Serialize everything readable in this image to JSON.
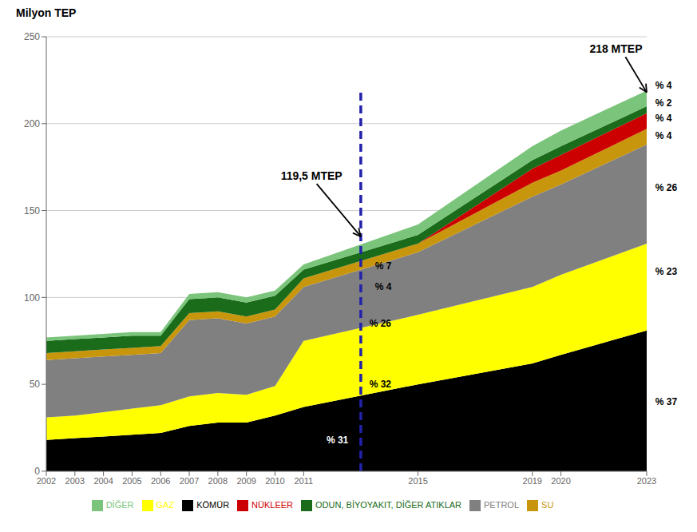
{
  "chart_data": {
    "type": "area",
    "stacked": true,
    "y_label": "Milyon TEP",
    "x": [
      2002,
      2003,
      2004,
      2005,
      2006,
      2007,
      2008,
      2009,
      2010,
      2011,
      2015,
      2019,
      2020,
      2023
    ],
    "xlim": [
      2002,
      2023
    ],
    "xticks": [
      2002,
      2003,
      2004,
      2005,
      2006,
      2007,
      2008,
      2009,
      2010,
      2011,
      2015,
      2019,
      2020,
      2023
    ],
    "ylim": [
      0,
      250
    ],
    "yticks": [
      0,
      50,
      100,
      150,
      200,
      250
    ],
    "grid": true,
    "legend": "bottom",
    "series": [
      {
        "name": "KÖMÜR",
        "color": "#000000",
        "values": [
          18,
          19,
          20,
          21,
          22,
          26,
          28,
          28,
          32,
          37,
          50,
          62,
          67,
          81
        ]
      },
      {
        "name": "GAZ",
        "color": "#ffff00",
        "values": [
          13,
          13,
          14,
          15,
          16,
          17,
          17,
          16,
          17,
          38,
          40,
          44,
          46,
          50
        ]
      },
      {
        "name": "PETROL",
        "color": "#808080",
        "values": [
          33,
          33,
          32,
          31,
          30,
          44,
          43,
          41,
          40,
          31,
          36,
          52,
          52,
          57
        ]
      },
      {
        "name": "SU",
        "color": "#c8960c",
        "values": [
          4,
          4,
          4,
          4,
          4,
          4,
          4,
          4,
          4,
          5,
          5,
          8,
          8,
          9
        ]
      },
      {
        "name": "NÜKLEER",
        "color": "#cc0000",
        "values": [
          0,
          0,
          0,
          0,
          0,
          0,
          0,
          0,
          0,
          0,
          0,
          8,
          9,
          9
        ]
      },
      {
        "name": "ODUN, BİYOYAKIT, DİĞER ATIKLAR",
        "color": "#1a6b1a",
        "values": [
          7,
          7,
          7,
          7,
          6,
          8,
          8,
          8,
          8,
          5,
          5,
          5,
          5,
          4
        ]
      },
      {
        "name": "DİĞER",
        "color": "#7bc47b",
        "values": [
          2,
          2,
          2,
          2,
          2,
          3,
          3,
          3,
          3,
          3,
          6,
          8,
          9,
          9
        ]
      }
    ],
    "reference_lines": [
      {
        "x": 2013,
        "y": [
          0,
          220
        ],
        "color": "#2222aa",
        "line_style": "dashed"
      }
    ],
    "annotations": [
      {
        "text": "119,5 MTEP",
        "x": 2013,
        "y": 135,
        "text_x": 2010.2,
        "text_y": 170
      },
      {
        "text": "218 MTEP",
        "x": 2023,
        "y": 218,
        "text_x": 2021.0,
        "text_y": 243
      },
      {
        "text": "% 7",
        "x": 2013.5,
        "y": 118
      },
      {
        "text": "% 4",
        "x": 2013.5,
        "y": 106
      },
      {
        "text": "% 26",
        "x": 2013.3,
        "y": 85
      },
      {
        "text": "% 32",
        "x": 2013.3,
        "y": 50
      },
      {
        "text": "% 31",
        "x": 2011.8,
        "y": 18,
        "color": "#ffffff"
      },
      {
        "text": "% 4",
        "x": 2023.3,
        "y": 222
      },
      {
        "text": "% 2",
        "x": 2023.3,
        "y": 212
      },
      {
        "text": "% 4",
        "x": 2023.3,
        "y": 203
      },
      {
        "text": "% 4",
        "x": 2023.3,
        "y": 193
      },
      {
        "text": "% 26",
        "x": 2023.3,
        "y": 163
      },
      {
        "text": "% 23",
        "x": 2023.3,
        "y": 115
      },
      {
        "text": "% 37",
        "x": 2023.3,
        "y": 40
      }
    ]
  }
}
